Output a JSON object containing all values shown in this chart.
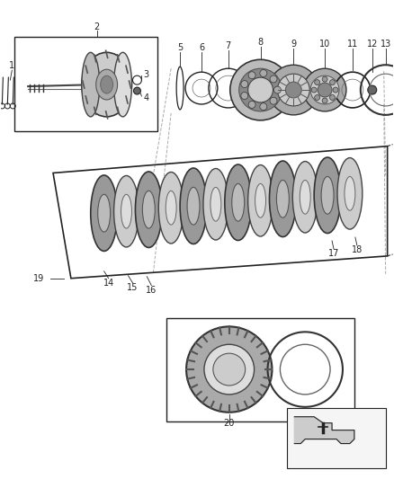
{
  "bg_color": "#ffffff",
  "fig_width": 4.38,
  "fig_height": 5.33,
  "dpi": 100,
  "gray": "#222222",
  "lgray": "#aaaaaa",
  "mgray": "#666666"
}
